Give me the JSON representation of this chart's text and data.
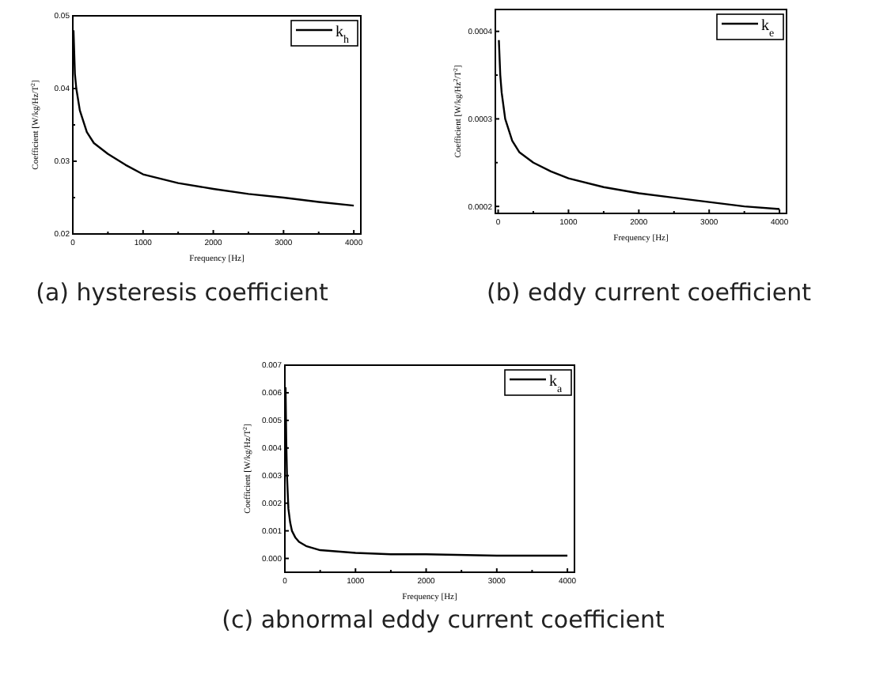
{
  "chart_data": [
    {
      "type": "line",
      "title": "(a) hysteresis coefficient",
      "xlabel": "Frequency [Hz]",
      "ylabel": "Coefficient [W/kg/Hz/T$^{2}$]",
      "legend": "top right",
      "grid": false,
      "xlim": [
        0,
        4100
      ],
      "ylim": [
        0.02,
        0.05
      ],
      "xticks": [
        0,
        {
          "value": 500,
          "label": null
        },
        1000,
        {
          "value": 1500,
          "label": null
        },
        2000,
        {
          "value": 2500,
          "label": null
        },
        3000,
        {
          "value": 3500,
          "label": null
        },
        4000
      ],
      "yticks": [
        0.02,
        {
          "value": 0.025,
          "label": null
        },
        0.03,
        {
          "value": 0.035,
          "label": null
        },
        0.04,
        {
          "value": 0.045,
          "label": null
        },
        0.05
      ],
      "series": [
        {
          "name": "k$_{h}$",
          "color": "#000000",
          "x": [
            10,
            30,
            50,
            100,
            200,
            300,
            500,
            750,
            1000,
            1500,
            2000,
            2500,
            3000,
            3500,
            4000
          ],
          "values": [
            0.048,
            0.042,
            0.04,
            0.037,
            0.034,
            0.0325,
            0.031,
            0.0295,
            0.0282,
            0.027,
            0.0262,
            0.0255,
            0.025,
            0.0244,
            0.0239
          ]
        }
      ]
    },
    {
      "type": "line",
      "title": "(b) eddy current coefficient",
      "xlabel": "Frequency [Hz]",
      "ylabel": "Coefficient [W/kg/Hz$^{2}$/T$^{2}$]",
      "legend": "top right",
      "grid": false,
      "xlim": [
        -40,
        4100
      ],
      "ylim": [
        0.000192,
        0.000425
      ],
      "xticks": [
        0,
        {
          "value": 500,
          "label": null
        },
        1000,
        {
          "value": 1500,
          "label": null
        },
        2000,
        {
          "value": 2500,
          "label": null
        },
        3000,
        {
          "value": 3500,
          "label": null
        },
        4000
      ],
      "yticks": [
        0.0002,
        {
          "value": 0.00025,
          "label": null
        },
        0.0003,
        {
          "value": 0.00035,
          "label": null
        },
        0.0004
      ],
      "series": [
        {
          "name": "k$_{e}$",
          "color": "#000000",
          "x": [
            10,
            30,
            50,
            100,
            200,
            300,
            500,
            750,
            1000,
            1500,
            2000,
            2500,
            3000,
            3500,
            4000
          ],
          "values": [
            0.00039,
            0.00035,
            0.00033,
            0.0003,
            0.000275,
            0.000262,
            0.00025,
            0.00024,
            0.000232,
            0.000222,
            0.000215,
            0.00021,
            0.000205,
            0.0002,
            0.000197
          ]
        }
      ]
    },
    {
      "type": "line",
      "title": "(c) abnormal eddy current coefficient",
      "xlabel": "Frequency [Hz]",
      "ylabel": "Coefficient [W/kg/Hz/T$^{2}$]",
      "legend": "top right",
      "grid": false,
      "xlim": [
        0,
        4100
      ],
      "ylim": [
        -0.0005,
        0.007
      ],
      "xticks": [
        0,
        {
          "value": 500,
          "label": null
        },
        1000,
        {
          "value": 1500,
          "label": null
        },
        2000,
        {
          "value": 2500,
          "label": null
        },
        3000,
        {
          "value": 3500,
          "label": null
        },
        4000
      ],
      "yticks": [
        {
          "value": 0,
          "label": "0.000"
        },
        {
          "value": 0.001,
          "label": "0.001"
        },
        {
          "value": 0.002,
          "label": "0.002"
        },
        {
          "value": 0.003,
          "label": "0.003"
        },
        {
          "value": 0.004,
          "label": "0.004"
        },
        {
          "value": 0.005,
          "label": "0.005"
        },
        {
          "value": 0.006,
          "label": "0.006"
        },
        {
          "value": 0.007,
          "label": "0.007"
        }
      ],
      "series": [
        {
          "name": "k$_{a}$",
          "color": "#000000",
          "x": [
            10,
            20,
            30,
            50,
            75,
            100,
            150,
            200,
            300,
            500,
            750,
            1000,
            1500,
            2000,
            3000,
            4000
          ],
          "values": [
            0.0062,
            0.0042,
            0.003,
            0.0018,
            0.0013,
            0.001,
            0.00075,
            0.0006,
            0.00045,
            0.0003,
            0.00025,
            0.0002,
            0.00015,
            0.00015,
            0.0001,
            0.0001
          ]
        }
      ]
    }
  ]
}
